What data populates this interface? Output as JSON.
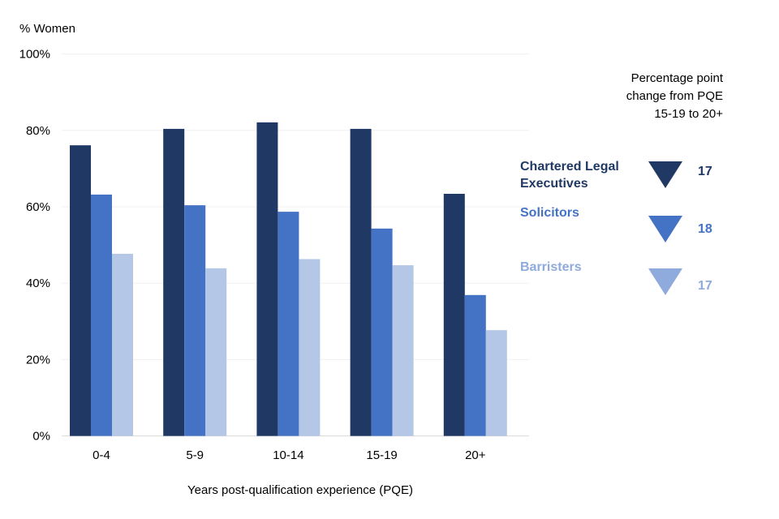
{
  "chart_data": {
    "type": "bar",
    "ylabel": "% Women",
    "xlabel": "Years post-qualification experience (PQE)",
    "categories": [
      "0-4",
      "5-9",
      "10-14",
      "15-19",
      "20+"
    ],
    "ylim": [
      0,
      100
    ],
    "yticks": [
      0,
      20,
      40,
      60,
      80,
      100
    ],
    "ytick_labels": [
      "0%",
      "20%",
      "40%",
      "60%",
      "80%",
      "100%"
    ],
    "grid": true,
    "series": [
      {
        "name": "Chartered Legal Executives",
        "color": "#203864",
        "values": [
          76.1,
          80.4,
          82.1,
          80.4,
          63.4
        ]
      },
      {
        "name": "Solicitors",
        "color": "#4472c4",
        "values": [
          63.2,
          60.4,
          58.7,
          54.3,
          36.9
        ]
      },
      {
        "name": "Barristers",
        "color": "#b4c7e7",
        "values": [
          47.7,
          43.9,
          46.3,
          44.7,
          27.7
        ]
      }
    ],
    "annotation": {
      "title_lines": [
        "Percentage point",
        "change from PQE",
        "15-19 to 20+"
      ],
      "legend_lines": [
        [
          "Chartered Legal",
          "Executives"
        ],
        [
          "Solicitors"
        ],
        [
          "Barristers"
        ]
      ],
      "changes": [
        "17",
        "18",
        "17"
      ],
      "marker_colors": [
        "#203864",
        "#4472c4",
        "#8faadc"
      ],
      "label_colors": [
        "#203864",
        "#4472c4",
        "#8faadc"
      ],
      "marker": "down-triangle"
    }
  }
}
